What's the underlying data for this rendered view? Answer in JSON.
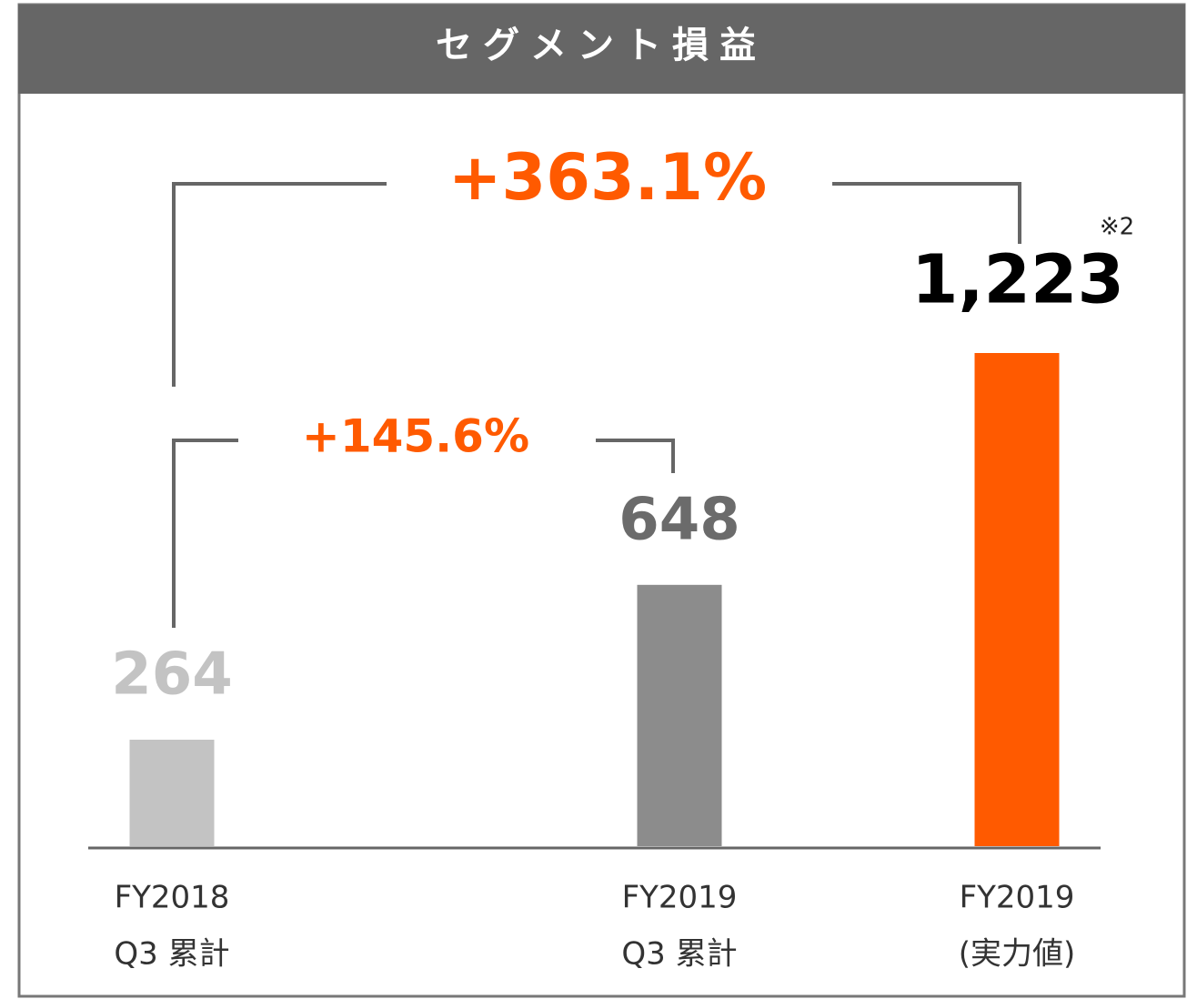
{
  "chart_data": {
    "type": "bar",
    "title": "セグメント損益",
    "categories": [
      [
        "FY2018",
        "Q3 累計"
      ],
      [
        "FY2019",
        "Q3 累計"
      ],
      [
        "FY2019",
        "(実力値)"
      ]
    ],
    "values": [
      264,
      648,
      1223
    ],
    "value_labels": [
      "264",
      "648",
      "1,223"
    ],
    "colors": [
      "#c3c3c3",
      "#8c8c8c",
      "#ff5a00"
    ],
    "value_label_colors": [
      "#c3c3c3",
      "#6b6b6b",
      "#000000"
    ],
    "annotations": [
      "+363.1%",
      "+145.6%",
      "※2"
    ]
  }
}
